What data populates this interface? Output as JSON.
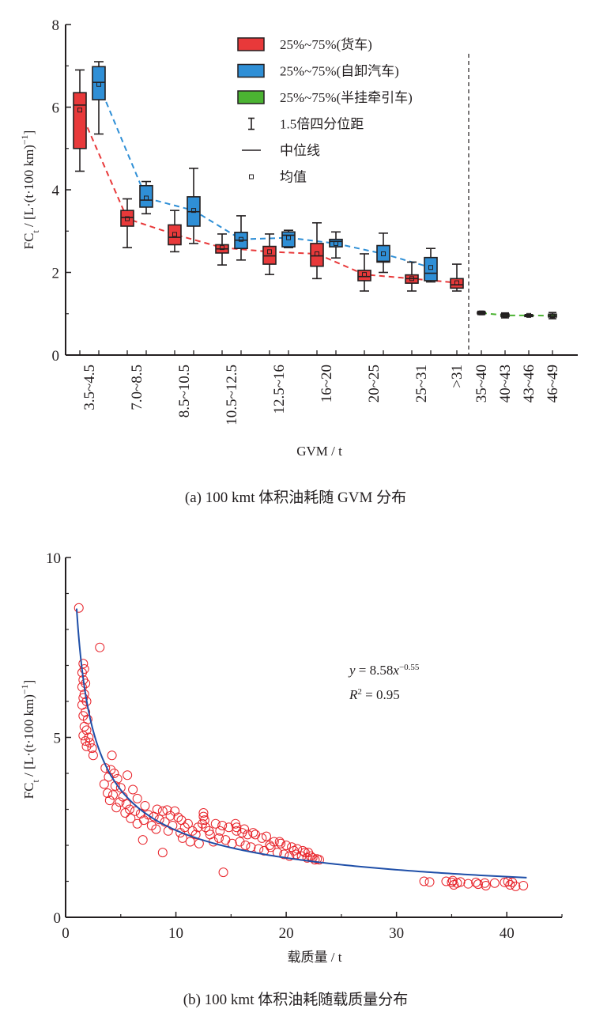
{
  "chart_data": [
    {
      "id": "a",
      "type": "box",
      "caption": "(a)  100 kmt 体积油耗随 GVM 分布",
      "xlabel": "GVM / t",
      "ylabel_main": "FC",
      "ylabel_sub": "t",
      "ylabel_rest": " / [L·(t·100 km)",
      "ylabel_sup": "−1",
      "ylabel_end": "]",
      "ylim": [
        0,
        8
      ],
      "yticks": [
        0,
        2,
        4,
        6,
        8
      ],
      "yminor": [
        1,
        3,
        5,
        7
      ],
      "grid": false,
      "legend_position": "top-right",
      "legend": [
        {
          "kind": "box",
          "color": "#e8393a",
          "label": "25%~75%(货车)"
        },
        {
          "kind": "box",
          "color": "#2f8fd6",
          "label": "25%~75%(自卸汽车)"
        },
        {
          "kind": "box",
          "color": "#4bb332",
          "label": "25%~75%(半挂牵引车)"
        },
        {
          "kind": "whisker",
          "label": "1.5倍四分位距"
        },
        {
          "kind": "median",
          "label": "中位线"
        },
        {
          "kind": "mean",
          "label": "均值"
        }
      ],
      "colors": {
        "truck": "#e8393a",
        "dump": "#2f8fd6",
        "semi": "#4bb332",
        "axis": "#231f20"
      },
      "categories": [
        "3.5~4.5",
        "7.0~8.5",
        "8.5~10.5",
        "10.5~12.5",
        "12.5~16",
        "16~20",
        "20~25",
        "25~31",
        ">31",
        "35~40",
        "40~43",
        "43~46",
        "46~49"
      ],
      "divider_after_category": ">31",
      "series": [
        {
          "name": "货车",
          "color_key": "truck",
          "category_index": [
            0,
            1,
            2,
            3,
            4,
            5,
            6,
            7,
            8
          ],
          "boxes": [
            {
              "min": 4.45,
              "q1": 5.0,
              "median": 6.05,
              "q3": 6.35,
              "max": 6.9,
              "mean": 5.93
            },
            {
              "min": 2.6,
              "q1": 3.12,
              "median": 3.33,
              "q3": 3.5,
              "max": 3.78,
              "mean": 3.3
            },
            {
              "min": 2.5,
              "q1": 2.67,
              "median": 2.85,
              "q3": 3.15,
              "max": 3.5,
              "mean": 2.92
            },
            {
              "min": 2.18,
              "q1": 2.47,
              "median": 2.57,
              "q3": 2.67,
              "max": 2.93,
              "mean": 2.6
            },
            {
              "min": 1.95,
              "q1": 2.2,
              "median": 2.4,
              "q3": 2.63,
              "max": 2.93,
              "mean": 2.5
            },
            {
              "min": 1.85,
              "q1": 2.15,
              "median": 2.4,
              "q3": 2.7,
              "max": 3.2,
              "mean": 2.45
            },
            {
              "min": 1.55,
              "q1": 1.8,
              "median": 1.9,
              "q3": 2.05,
              "max": 2.45,
              "mean": 1.95
            },
            {
              "min": 1.55,
              "q1": 1.74,
              "median": 1.85,
              "q3": 1.94,
              "max": 2.25,
              "mean": 1.85
            },
            {
              "min": 1.55,
              "q1": 1.62,
              "median": 1.7,
              "q3": 1.85,
              "max": 2.2,
              "mean": 1.75
            }
          ]
        },
        {
          "name": "自卸汽车",
          "color_key": "dump",
          "category_index": [
            0,
            1,
            2,
            3,
            4,
            5,
            6,
            7
          ],
          "boxes": [
            {
              "min": 5.35,
              "q1": 6.18,
              "median": 6.6,
              "q3": 6.98,
              "max": 7.1,
              "mean": 6.55
            },
            {
              "min": 3.42,
              "q1": 3.58,
              "median": 3.75,
              "q3": 4.1,
              "max": 4.2,
              "mean": 3.8
            },
            {
              "min": 2.7,
              "q1": 3.12,
              "median": 3.47,
              "q3": 3.83,
              "max": 4.52,
              "mean": 3.5
            },
            {
              "min": 2.3,
              "q1": 2.58,
              "median": 2.78,
              "q3": 2.97,
              "max": 3.37,
              "mean": 2.8
            },
            {
              "min": 2.6,
              "q1": 2.62,
              "median": 2.9,
              "q3": 2.98,
              "max": 3.02,
              "mean": 2.84
            },
            {
              "min": 2.35,
              "q1": 2.62,
              "median": 2.75,
              "q3": 2.8,
              "max": 2.98,
              "mean": 2.7
            },
            {
              "min": 2.0,
              "q1": 2.25,
              "median": 2.27,
              "q3": 2.65,
              "max": 2.95,
              "mean": 2.45
            },
            {
              "min": 1.77,
              "q1": 1.8,
              "median": 1.98,
              "q3": 2.36,
              "max": 2.58,
              "mean": 2.12
            }
          ]
        },
        {
          "name": "半挂牵引车",
          "color_key": "semi",
          "category_index": [
            9,
            10,
            11,
            12
          ],
          "boxes": [
            {
              "min": 0.98,
              "q1": 1.0,
              "median": 1.02,
              "q3": 1.04,
              "max": 1.06,
              "mean": 1.02
            },
            {
              "min": 0.9,
              "q1": 0.93,
              "median": 0.96,
              "q3": 0.99,
              "max": 1.02,
              "mean": 0.96
            },
            {
              "min": 0.94,
              "q1": 0.95,
              "median": 0.96,
              "q3": 0.97,
              "max": 0.98,
              "mean": 0.96
            },
            {
              "min": 0.88,
              "q1": 0.92,
              "median": 0.95,
              "q3": 0.99,
              "max": 1.03,
              "mean": 0.95
            }
          ]
        }
      ]
    },
    {
      "id": "b",
      "type": "scatter",
      "caption": "(b)  100 kmt 体积油耗随载质量分布",
      "xlabel": "载质量 / t",
      "ylabel_main": "FC",
      "ylabel_sub": "t",
      "ylabel_rest": " / [L·(t·100 km)",
      "ylabel_sup": "−1",
      "ylabel_end": "]",
      "xlim": [
        0,
        45
      ],
      "ylim": [
        0,
        10
      ],
      "xticks": [
        0,
        10,
        20,
        30,
        40
      ],
      "xminor": [
        5,
        15,
        25,
        35,
        45
      ],
      "yticks": [
        0,
        5,
        10
      ],
      "yminor": [
        1,
        2,
        3,
        4,
        6,
        7,
        8,
        9
      ],
      "grid": false,
      "marker_color": "#e8232a",
      "fit_color": "#1f4fa8",
      "fit": {
        "a": 8.58,
        "b": -0.55,
        "x_range": [
          1.0,
          41.8
        ]
      },
      "annotation": {
        "eq_prefix": "y",
        "eq_mid": " = 8.58",
        "eq_x": "x",
        "eq_exp": "−0.55",
        "r2_prefix": "R",
        "r2_sup": "2",
        "r2_value": " = 0.95"
      },
      "points": [
        [
          1.2,
          8.6
        ],
        [
          3.1,
          7.5
        ],
        [
          1.6,
          7.05
        ],
        [
          1.7,
          6.9
        ],
        [
          1.5,
          6.8
        ],
        [
          1.6,
          6.6
        ],
        [
          1.8,
          6.5
        ],
        [
          1.5,
          6.4
        ],
        [
          1.7,
          6.2
        ],
        [
          1.6,
          6.1
        ],
        [
          1.9,
          6.0
        ],
        [
          1.5,
          5.9
        ],
        [
          1.8,
          5.7
        ],
        [
          1.6,
          5.6
        ],
        [
          2.0,
          5.5
        ],
        [
          1.7,
          5.3
        ],
        [
          1.9,
          5.2
        ],
        [
          1.6,
          5.05
        ],
        [
          2.1,
          5.0
        ],
        [
          1.8,
          4.9
        ],
        [
          2.2,
          4.85
        ],
        [
          1.9,
          4.75
        ],
        [
          2.4,
          4.7
        ],
        [
          2.5,
          4.5
        ],
        [
          4.2,
          4.5
        ],
        [
          3.6,
          4.15
        ],
        [
          4.1,
          4.1
        ],
        [
          4.4,
          4.0
        ],
        [
          5.6,
          3.95
        ],
        [
          3.9,
          3.9
        ],
        [
          4.7,
          3.85
        ],
        [
          3.5,
          3.7
        ],
        [
          4.5,
          3.65
        ],
        [
          5.0,
          3.6
        ],
        [
          6.1,
          3.55
        ],
        [
          3.8,
          3.45
        ],
        [
          4.3,
          3.4
        ],
        [
          5.2,
          3.35
        ],
        [
          6.5,
          3.3
        ],
        [
          4.0,
          3.25
        ],
        [
          4.9,
          3.2
        ],
        [
          5.5,
          3.15
        ],
        [
          7.2,
          3.1
        ],
        [
          4.6,
          3.05
        ],
        [
          5.8,
          3.0
        ],
        [
          6.3,
          2.95
        ],
        [
          8.3,
          3.0
        ],
        [
          8.8,
          2.95
        ],
        [
          9.2,
          2.98
        ],
        [
          9.9,
          2.95
        ],
        [
          5.4,
          2.9
        ],
        [
          6.8,
          2.88
        ],
        [
          7.5,
          2.85
        ],
        [
          8.0,
          2.8
        ],
        [
          9.5,
          2.82
        ],
        [
          10.2,
          2.78
        ],
        [
          5.9,
          2.75
        ],
        [
          7.1,
          2.7
        ],
        [
          8.5,
          2.72
        ],
        [
          9.0,
          2.65
        ],
        [
          10.5,
          2.7
        ],
        [
          11.1,
          2.6
        ],
        [
          6.5,
          2.6
        ],
        [
          7.8,
          2.55
        ],
        [
          9.7,
          2.55
        ],
        [
          10.8,
          2.5
        ],
        [
          12.0,
          2.5
        ],
        [
          8.2,
          2.45
        ],
        [
          9.3,
          2.4
        ],
        [
          10.4,
          2.35
        ],
        [
          11.5,
          2.4
        ],
        [
          12.5,
          2.9
        ],
        [
          12.5,
          2.8
        ],
        [
          12.6,
          2.7
        ],
        [
          12.4,
          2.6
        ],
        [
          12.7,
          2.5
        ],
        [
          13.0,
          2.4
        ],
        [
          13.6,
          2.6
        ],
        [
          14.2,
          2.55
        ],
        [
          14.8,
          2.5
        ],
        [
          15.4,
          2.6
        ],
        [
          15.5,
          2.5
        ],
        [
          15.5,
          2.4
        ],
        [
          16.0,
          2.35
        ],
        [
          16.5,
          2.3
        ],
        [
          17.2,
          2.3
        ],
        [
          17.8,
          2.2
        ],
        [
          18.2,
          2.25
        ],
        [
          18.9,
          2.1
        ],
        [
          19.5,
          2.05
        ],
        [
          20.0,
          2.0
        ],
        [
          20.5,
          1.95
        ],
        [
          21.0,
          1.9
        ],
        [
          21.5,
          1.85
        ],
        [
          22.0,
          1.8
        ],
        [
          7.0,
          2.15
        ],
        [
          8.8,
          1.8
        ],
        [
          10.6,
          2.2
        ],
        [
          11.3,
          2.1
        ],
        [
          12.1,
          2.05
        ],
        [
          13.4,
          2.1
        ],
        [
          13.9,
          2.2
        ],
        [
          14.5,
          2.15
        ],
        [
          15.1,
          2.05
        ],
        [
          15.8,
          2.1
        ],
        [
          16.3,
          2.0
        ],
        [
          16.8,
          1.95
        ],
        [
          17.5,
          1.9
        ],
        [
          18.0,
          1.85
        ],
        [
          18.6,
          1.95
        ],
        [
          19.2,
          1.8
        ],
        [
          19.8,
          1.75
        ],
        [
          20.3,
          1.7
        ],
        [
          20.9,
          1.75
        ],
        [
          21.4,
          1.7
        ],
        [
          21.9,
          1.65
        ],
        [
          22.4,
          1.65
        ],
        [
          22.6,
          1.6
        ],
        [
          22.8,
          1.62
        ],
        [
          23.0,
          1.6
        ],
        [
          14.3,
          1.25
        ],
        [
          11.8,
          2.3
        ],
        [
          13.1,
          2.3
        ],
        [
          14.0,
          2.4
        ],
        [
          16.2,
          2.45
        ],
        [
          17.0,
          2.35
        ],
        [
          18.5,
          2.0
        ],
        [
          19.4,
          2.1
        ],
        [
          20.7,
          1.85
        ],
        [
          21.7,
          1.8
        ],
        [
          22.2,
          1.7
        ],
        [
          32.5,
          1.0
        ],
        [
          33.0,
          0.98
        ],
        [
          34.5,
          1.0
        ],
        [
          35.0,
          0.97
        ],
        [
          35.2,
          0.9
        ],
        [
          35.5,
          0.95
        ],
        [
          35.8,
          0.98
        ],
        [
          36.5,
          0.93
        ],
        [
          37.2,
          0.97
        ],
        [
          38.0,
          0.95
        ],
        [
          38.1,
          0.88
        ],
        [
          38.9,
          0.95
        ],
        [
          39.8,
          0.97
        ],
        [
          40.3,
          0.9
        ],
        [
          40.5,
          0.97
        ],
        [
          40.8,
          0.86
        ],
        [
          41.5,
          0.88
        ],
        [
          35.1,
          1.02
        ],
        [
          37.4,
          0.92
        ],
        [
          40.1,
          0.99
        ]
      ]
    }
  ]
}
